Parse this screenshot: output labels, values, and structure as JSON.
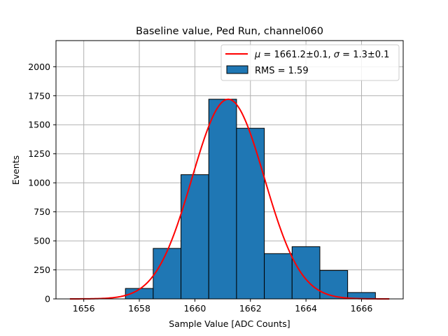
{
  "chart_data": {
    "type": "bar",
    "title": "Baseline value, Ped Run, channel060",
    "xlabel": "Sample Value [ADC Counts]",
    "ylabel": "Events",
    "xlim": [
      1655.0,
      1667.5
    ],
    "ylim": [
      0,
      2225
    ],
    "grid": true,
    "legend_position": "top-right",
    "xticks": [
      1656,
      1658,
      1660,
      1662,
      1664,
      1666
    ],
    "yticks": [
      0,
      250,
      500,
      750,
      1000,
      1250,
      1500,
      1750,
      2000
    ],
    "bin_edges": [
      1657.5,
      1658.5,
      1659.5,
      1660.5,
      1661.5,
      1662.5,
      1663.5,
      1664.5,
      1665.5,
      1666.5
    ],
    "values": [
      90,
      435,
      1070,
      1720,
      1470,
      390,
      450,
      245,
      55
    ],
    "bar_color": "#1f77b4",
    "fit": {
      "mu": 1661.2,
      "sigma": 1.3,
      "amplitude": 1720,
      "x_range": [
        1655.5,
        1667.0
      ],
      "color": "#ff0000"
    },
    "legend": [
      {
        "mu_text": "1661.2±0.1",
        "sigma_text": "1.3±0.1"
      },
      {
        "label": "RMS = 1.59"
      }
    ]
  }
}
